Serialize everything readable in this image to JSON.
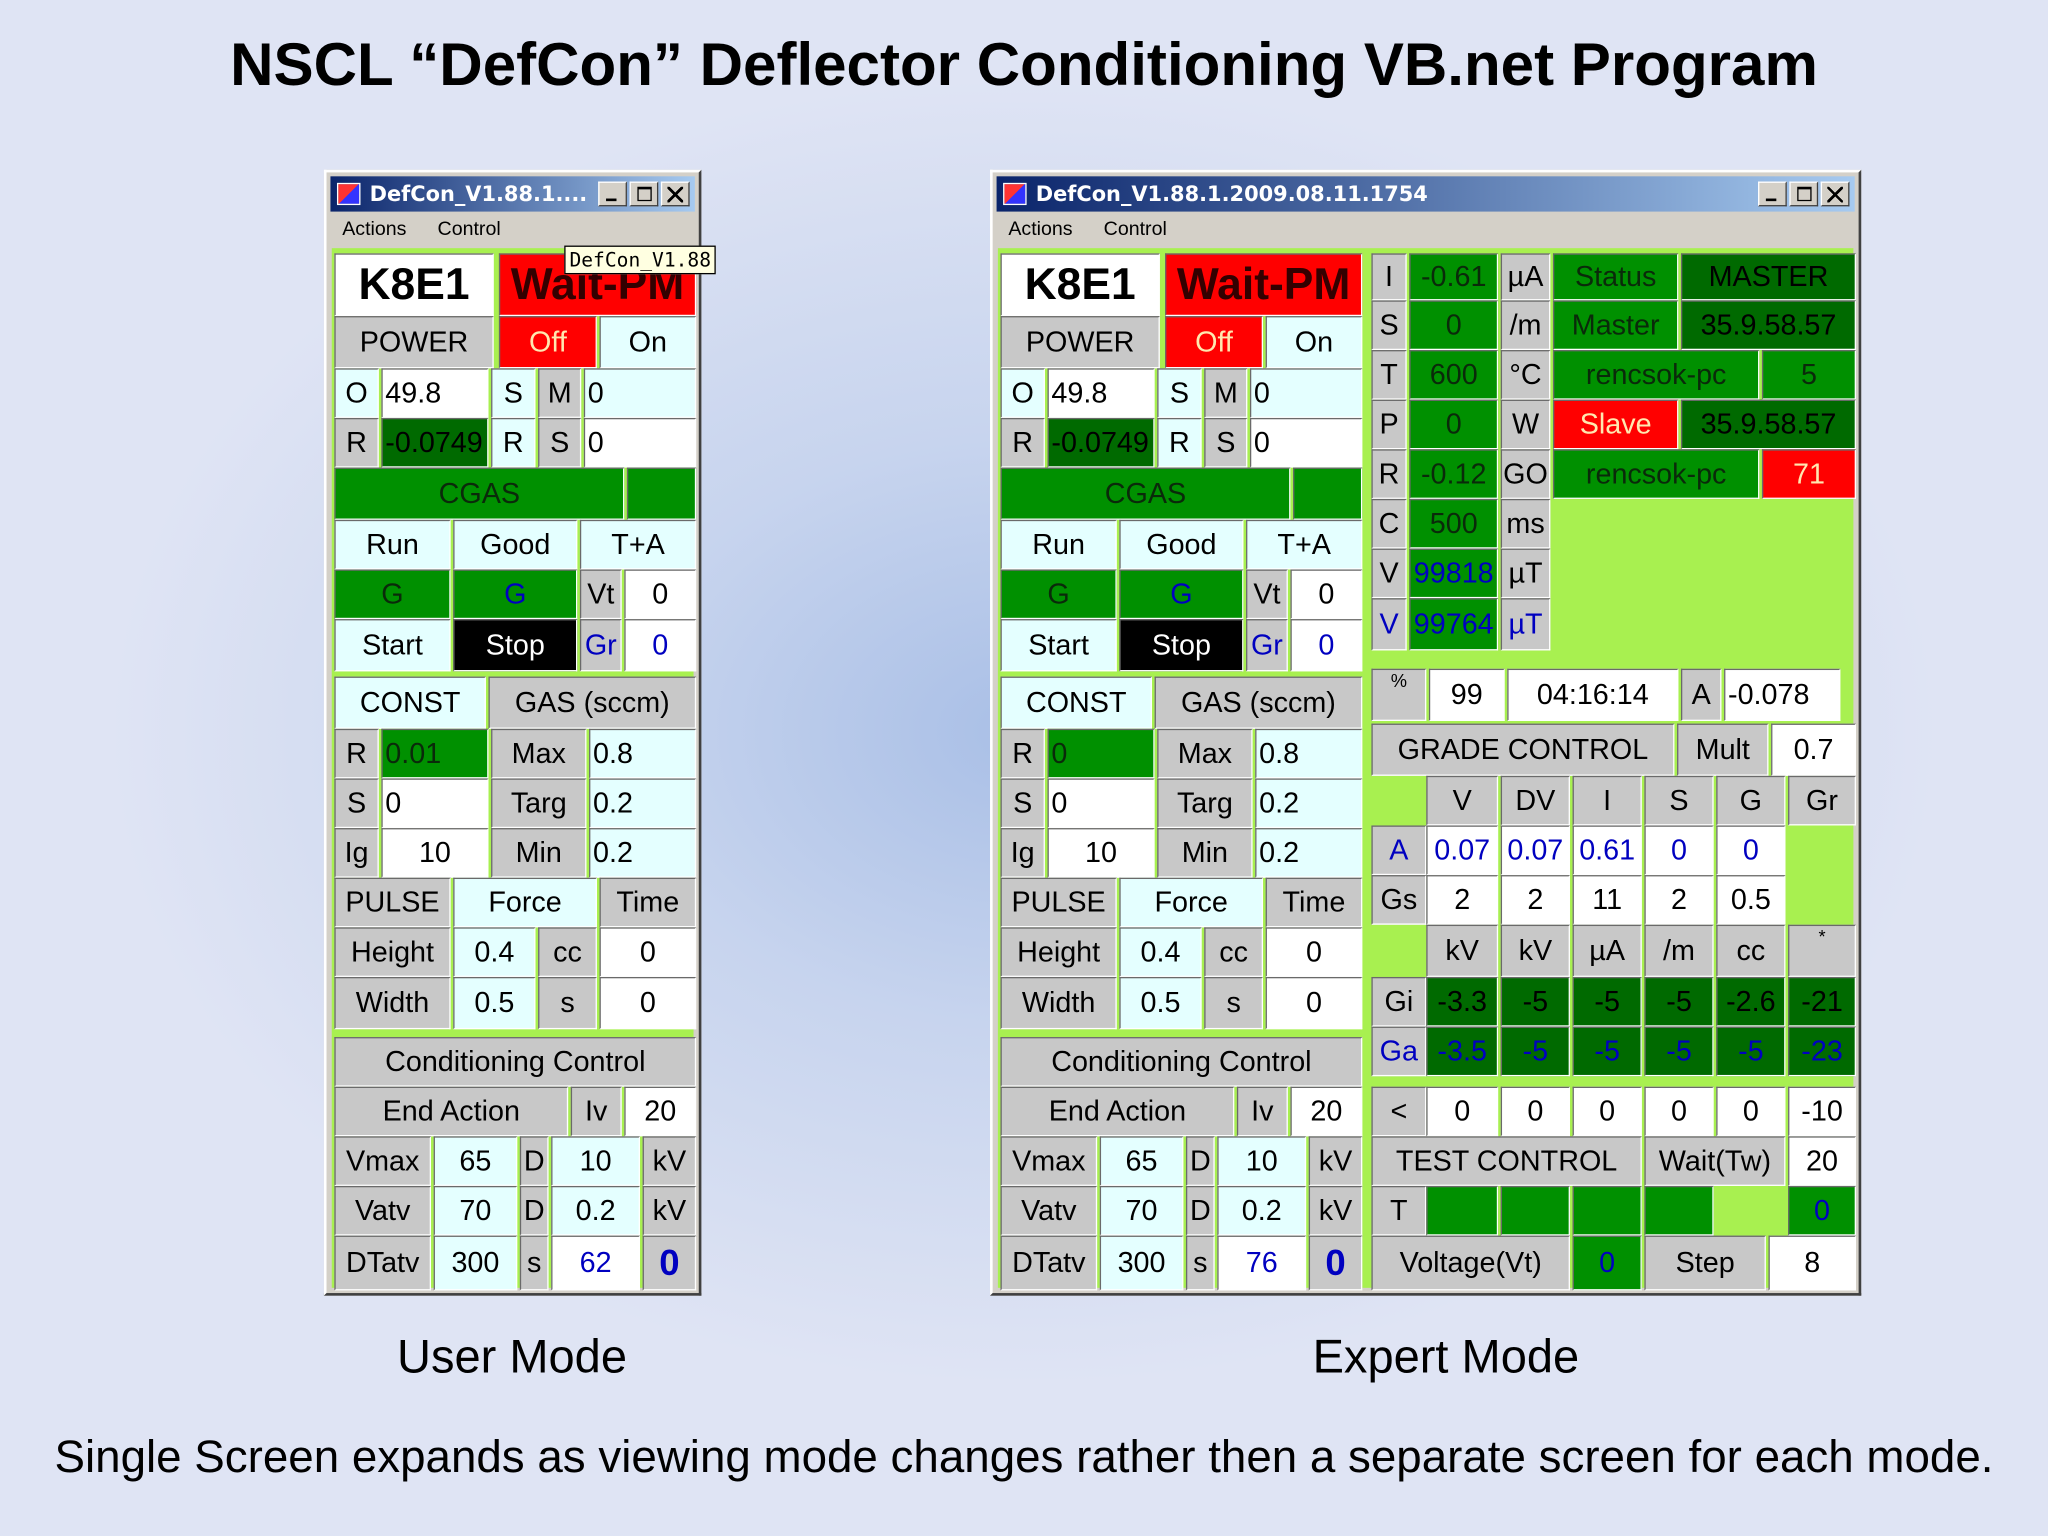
{
  "title": "NSCL “DefCon” Deflector Conditioning VB.net Program",
  "caption": "Single Screen expands as viewing mode changes rather then a separate screen for each mode.",
  "windows": [
    {
      "title": "DefCon_V1.88.1....",
      "menu": [
        "Actions",
        "Control"
      ],
      "tooltip": "DefCon_V1.88",
      "mode": "User Mode",
      "panel": [
        [
          "K8E1",
          "Wait-PM"
        ],
        [
          "POWER",
          "Off",
          "On"
        ],
        [
          "O",
          "49.8",
          "S",
          "M",
          "0"
        ],
        [
          "R",
          "-0.0749",
          "R",
          "S",
          "0"
        ],
        [
          "CGAS"
        ],
        [
          "Run",
          "Good",
          "T+A"
        ],
        [
          "G",
          "G",
          "Vt",
          "0"
        ],
        [
          "Start",
          "Stop",
          "Gr",
          "0"
        ],
        [
          "CONST",
          "GAS (sccm)"
        ],
        [
          "R",
          "0.01",
          "Max",
          "0.8"
        ],
        [
          "S",
          "0",
          "Targ",
          "0.2"
        ],
        [
          "Ig",
          "10",
          "Min",
          "0.2"
        ],
        [
          "PULSE",
          "Force",
          "Time"
        ],
        [
          "Height",
          "0.4",
          "cc",
          "0"
        ],
        [
          "Width",
          "0.5",
          "s",
          "0"
        ],
        [
          "Conditioning Control"
        ],
        [
          "End Action",
          "Iv",
          "20"
        ],
        [
          "Vmax",
          "65",
          "D",
          "10",
          "kV"
        ],
        [
          "Vatv",
          "70",
          "D",
          "0.2",
          "kV"
        ],
        [
          "DTatv",
          "300",
          "s",
          "62",
          "0"
        ]
      ]
    },
    {
      "title": "DefCon_V1.88.1.2009.08.11.1754",
      "menu": [
        "Actions",
        "Control"
      ],
      "mode": "Expert Mode",
      "panel": [
        [
          "K8E1",
          "Wait-PM"
        ],
        [
          "POWER",
          "Off",
          "On"
        ],
        [
          "O",
          "49.8",
          "S",
          "M",
          "0"
        ],
        [
          "R",
          "-0.0749",
          "R",
          "S",
          "0"
        ],
        [
          "CGAS"
        ],
        [
          "Run",
          "Good",
          "T+A"
        ],
        [
          "G",
          "G",
          "Vt",
          "0"
        ],
        [
          "Start",
          "Stop",
          "Gr",
          "0"
        ],
        [
          "CONST",
          "GAS (sccm)"
        ],
        [
          "R",
          "0",
          "Max",
          "0.8"
        ],
        [
          "S",
          "0",
          "Targ",
          "0.2"
        ],
        [
          "Ig",
          "10",
          "Min",
          "0.2"
        ],
        [
          "PULSE",
          "Force",
          "Time"
        ],
        [
          "Height",
          "0.4",
          "cc",
          "0"
        ],
        [
          "Width",
          "0.5",
          "s",
          "0"
        ],
        [
          "Conditioning Control"
        ],
        [
          "End Action",
          "Iv",
          "20"
        ],
        [
          "Vmax",
          "65",
          "D",
          "10",
          "kV"
        ],
        [
          "Vatv",
          "70",
          "D",
          "0.2",
          "kV"
        ],
        [
          "DTatv",
          "300",
          "s",
          "76",
          "0"
        ]
      ],
      "expert": [
        [
          "I",
          "-0.61",
          "µA",
          "Status",
          "MASTER"
        ],
        [
          "S",
          "0",
          "/m",
          "Master",
          "35.9.58.57"
        ],
        [
          "T",
          "600",
          "°C",
          "rencsok-pc",
          "5"
        ],
        [
          "P",
          "0",
          "W",
          "Slave",
          "35.9.58.57"
        ],
        [
          "R",
          "-0.12",
          "GO",
          "rencsok-pc",
          "71"
        ],
        [
          "C",
          "500",
          "ms"
        ],
        [
          "V",
          "99818",
          "µT"
        ],
        [
          "V",
          "99764",
          "µT"
        ],
        [
          "%",
          "99",
          "04:16:14",
          "A",
          "-0.078"
        ],
        [
          "GRADE CONTROL",
          "Mult",
          "0.7"
        ],
        [
          "V",
          "DV",
          "I",
          "S",
          "G",
          "Gr"
        ],
        [
          "A",
          "0.07",
          "0.07",
          "0.61",
          "0",
          "0"
        ],
        [
          "Gs",
          "2",
          "2",
          "11",
          "2",
          "0.5"
        ],
        [
          "kV",
          "kV",
          "µA",
          "/m",
          "cc",
          "*"
        ],
        [
          "Gi",
          "-3.3",
          "-5",
          "-5",
          "-5",
          "-2.6",
          "-21"
        ],
        [
          "Ga",
          "-3.5",
          "-5",
          "-5",
          "-5",
          "-5",
          "-23"
        ],
        [
          "<",
          "0",
          "0",
          "0",
          "0",
          "0",
          "-10"
        ],
        [
          "TEST CONTROL",
          "Wait(Tw)",
          "20"
        ],
        [
          "T",
          "0"
        ],
        [
          "Voltage(Vt)",
          "0",
          "Step",
          "8"
        ]
      ]
    }
  ]
}
